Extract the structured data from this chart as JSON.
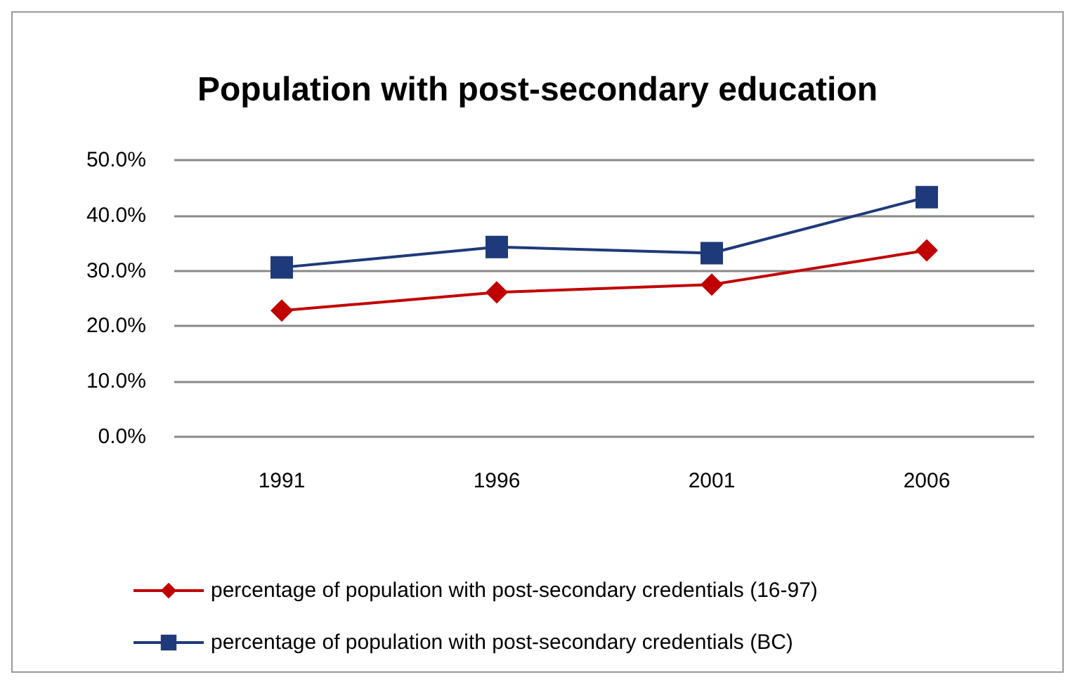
{
  "chart_data": {
    "type": "line",
    "title": "Population with post-secondary education",
    "categories": [
      "1991",
      "1996",
      "2001",
      "2006"
    ],
    "series": [
      {
        "name": "percentage of population with post-secondary credentials (16-97)",
        "color": "#c00000",
        "marker": "diamond",
        "values": [
          22.8,
          26.1,
          27.5,
          33.7
        ]
      },
      {
        "name": "percentage of population with post-secondary credentials (BC)",
        "color": "#1f3a7a",
        "marker": "square",
        "values": [
          30.6,
          34.3,
          33.2,
          43.3
        ]
      }
    ],
    "ylim": [
      0,
      50
    ],
    "yticks": [
      {
        "value": 0,
        "label": "0.0%"
      },
      {
        "value": 10,
        "label": "10.0%"
      },
      {
        "value": 20,
        "label": "20.0%"
      },
      {
        "value": 30,
        "label": "30.0%"
      },
      {
        "value": 40,
        "label": "40.0%"
      },
      {
        "value": 50,
        "label": "50.0%"
      }
    ],
    "grid": "y",
    "legend": "bottom"
  }
}
